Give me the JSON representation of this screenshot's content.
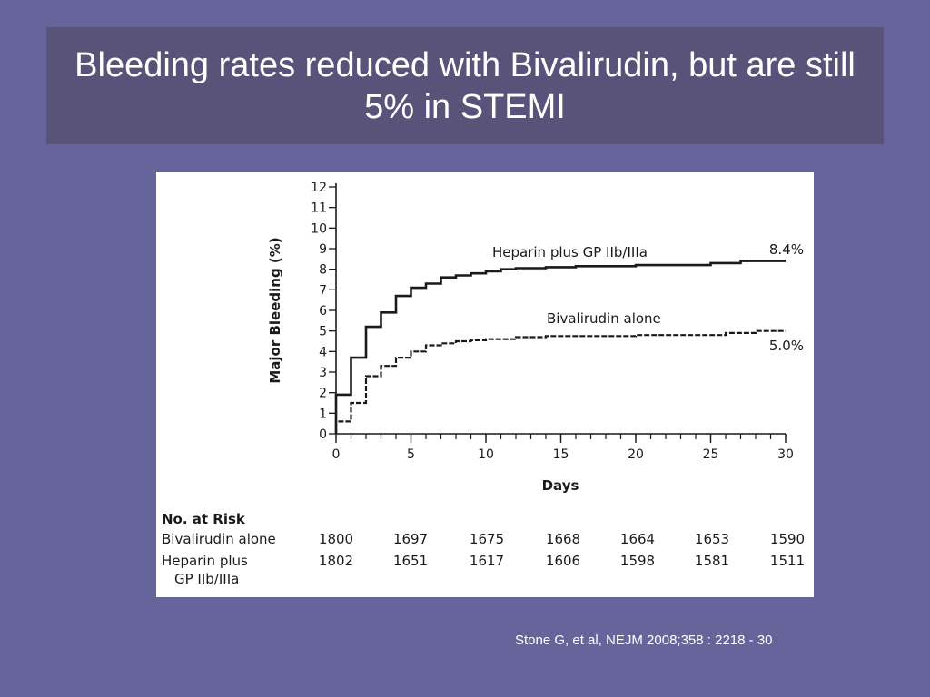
{
  "slide": {
    "title": "Bleeding rates reduced with Bivalirudin, but are still 5% in STEMI",
    "citation": "Stone G, et al, NEJM 2008;358 : 2218 - 30"
  },
  "colors": {
    "background": "#65659b",
    "title_box": "#5a5379",
    "figure_background": "#ffffff",
    "line": "#1a1a1a"
  },
  "chart_data": {
    "type": "line",
    "title": "",
    "xlabel": "Days",
    "ylabel": "Major Bleeding (%)",
    "xlim": [
      0,
      30
    ],
    "ylim": [
      0,
      12
    ],
    "x_ticks": [
      "0",
      "5",
      "10",
      "15",
      "20",
      "25",
      "30"
    ],
    "y_ticks": [
      "0",
      "1",
      "2",
      "3",
      "4",
      "5",
      "6",
      "7",
      "8",
      "9",
      "10",
      "11",
      "12"
    ],
    "grid": false,
    "series": [
      {
        "name": "Heparin plus GP IIb/IIIa",
        "style": "solid",
        "end_label": "8.4%",
        "x": [
          0,
          1,
          2,
          3,
          4,
          5,
          6,
          7,
          8,
          9,
          10,
          11,
          12,
          14,
          16,
          20,
          25,
          27,
          30
        ],
        "y": [
          1.9,
          3.7,
          5.2,
          5.9,
          6.7,
          7.1,
          7.3,
          7.6,
          7.7,
          7.8,
          7.9,
          8.0,
          8.05,
          8.1,
          8.15,
          8.2,
          8.3,
          8.4,
          8.4
        ]
      },
      {
        "name": "Bivalirudin alone",
        "style": "dashed",
        "end_label": "5.0%",
        "x": [
          0,
          1,
          2,
          3,
          4,
          5,
          6,
          7,
          8,
          9,
          10,
          12,
          14,
          20,
          26,
          28,
          30
        ],
        "y": [
          0.6,
          1.5,
          2.8,
          3.3,
          3.7,
          4.0,
          4.3,
          4.4,
          4.5,
          4.55,
          4.6,
          4.7,
          4.75,
          4.8,
          4.9,
          5.0,
          5.0
        ]
      }
    ],
    "risk_table": {
      "heading": "No. at Risk",
      "rows": [
        {
          "label_lines": [
            "Bivalirudin alone"
          ],
          "values": [
            "1800",
            "1697",
            "1675",
            "1668",
            "1664",
            "1653",
            "1590"
          ]
        },
        {
          "label_lines": [
            "Heparin plus",
            "GP IIb/IIIa"
          ],
          "values": [
            "1802",
            "1651",
            "1617",
            "1606",
            "1598",
            "1581",
            "1511"
          ]
        }
      ]
    }
  }
}
